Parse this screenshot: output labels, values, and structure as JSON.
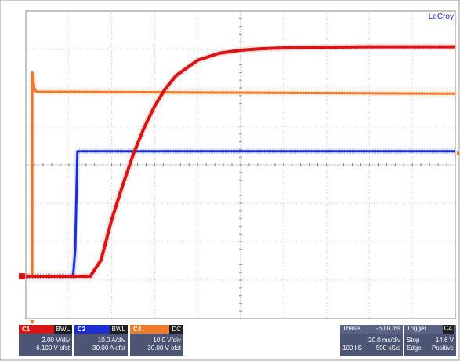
{
  "brand": "LeCroy",
  "chart_data": {
    "type": "line",
    "grid": true,
    "grid_divisions": {
      "x": 10,
      "y": 8
    },
    "series": [
      {
        "channel": "C1",
        "color": "#d81414",
        "x_ms": [
          -60,
          -38,
          -30,
          -25,
          -20,
          -15,
          -10,
          -5,
          0,
          5,
          10,
          20,
          30,
          40,
          50,
          60,
          80,
          100,
          140
        ],
        "y_div": [
          -2.9,
          -2.9,
          -2.9,
          -2.48,
          -1.42,
          -0.55,
          0.27,
          0.95,
          1.53,
          1.98,
          2.32,
          2.72,
          2.9,
          2.98,
          3.02,
          3.04,
          3.06,
          3.07,
          3.07
        ]
      },
      {
        "channel": "C2",
        "color": "#1c2ed6",
        "x_ms": [
          -60,
          -38,
          -37,
          -36,
          140
        ],
        "y_div": [
          -2.9,
          -2.9,
          -2.2,
          0.35,
          0.35
        ]
      },
      {
        "channel": "C4",
        "color": "#f07a28",
        "x_ms": [
          -60,
          -57,
          -57,
          -56,
          -55,
          140
        ],
        "y_div": [
          -2.9,
          -2.9,
          2.4,
          1.95,
          1.9,
          1.85
        ]
      }
    ]
  },
  "channels": [
    {
      "name": "C1",
      "color": "#d81414",
      "tag": "BWL",
      "scale": "2.00 V/div",
      "offset": "-6.100 V ofst"
    },
    {
      "name": "C2",
      "color": "#1c2ed6",
      "tag": "BWL",
      "scale": "10.0 A/div",
      "offset": "-30.00 A ofst"
    },
    {
      "name": "C4",
      "color": "#f07a28",
      "tag": "DC",
      "scale": "10.0 V/div",
      "offset": "-30.00 V ofst"
    }
  ],
  "timebase": {
    "label": "Tbase",
    "position": "-60.0 ms",
    "scale": "20.0 ms/div",
    "samples": "100 kS",
    "rate": "500 kS/s"
  },
  "trigger": {
    "label": "Trigger",
    "channel": "C4",
    "mode": "Stop",
    "level": "14.6 V",
    "type": "Edge",
    "slope": "Positive"
  }
}
